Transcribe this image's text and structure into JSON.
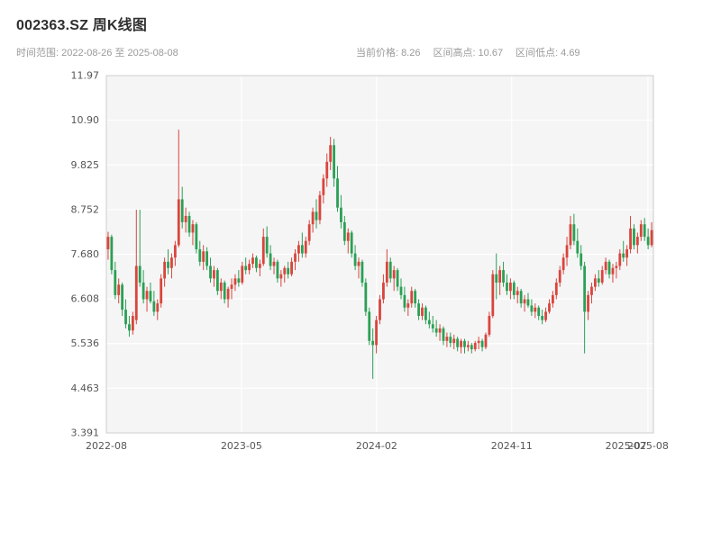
{
  "header": {
    "title": "002363.SZ 周K线图",
    "time_range": "时间范围: 2022-08-26 至 2025-08-08",
    "stats": [
      {
        "label": "当前价格:",
        "value": "8.26"
      },
      {
        "label": "区间高点:",
        "value": "10.67"
      },
      {
        "label": "区间低点:",
        "value": "4.69"
      }
    ]
  },
  "chart_data": {
    "type": "candlestick",
    "symbol": "002363.SZ",
    "period": "weekly",
    "start_date": "2022-08-26",
    "end_date": "2025-08-08",
    "current_price": 8.26,
    "range_high": 10.67,
    "range_low": 4.69,
    "ylim": [
      3.391,
      11.97
    ],
    "yticks": [
      "11.97",
      "10.90",
      "9.825",
      "8.752",
      "7.680",
      "6.608",
      "5.536",
      "4.463",
      "3.391"
    ],
    "ytick_values": [
      11.97,
      10.9,
      9.825,
      8.752,
      7.68,
      6.608,
      5.536,
      4.463,
      3.391
    ],
    "xticks": [
      {
        "label": "2022-08",
        "pos": 0.0
      },
      {
        "label": "2023-05",
        "pos": 0.247
      },
      {
        "label": "2024-02",
        "pos": 0.494
      },
      {
        "label": "2024-11",
        "pos": 0.741
      },
      {
        "label": "2025-07",
        "pos": 0.95,
        "minor": true
      },
      {
        "label": "2025-08",
        "pos": 0.99
      }
    ],
    "colors": {
      "up": "#d9453c",
      "down": "#2aa054",
      "plot_bg": "#f5f5f6",
      "grid": "#ffffff",
      "axis": "#cccccc",
      "tick_text": "#555555"
    },
    "ohlc": [
      [
        7.8,
        8.22,
        7.55,
        8.1
      ],
      [
        8.1,
        8.15,
        7.2,
        7.3
      ],
      [
        7.3,
        7.5,
        6.6,
        6.7
      ],
      [
        6.7,
        7.1,
        6.5,
        6.95
      ],
      [
        6.95,
        7.0,
        6.2,
        6.35
      ],
      [
        6.35,
        6.6,
        5.9,
        6.0
      ],
      [
        6.0,
        6.2,
        5.7,
        5.85
      ],
      [
        5.85,
        6.3,
        5.75,
        6.2
      ],
      [
        6.1,
        8.75,
        6.0,
        7.4
      ],
      [
        7.4,
        8.75,
        6.9,
        7.0
      ],
      [
        7.0,
        7.3,
        6.5,
        6.6
      ],
      [
        6.6,
        6.9,
        6.3,
        6.8
      ],
      [
        6.8,
        7.0,
        6.5,
        6.55
      ],
      [
        6.55,
        6.8,
        6.2,
        6.3
      ],
      [
        6.3,
        6.6,
        6.1,
        6.5
      ],
      [
        6.5,
        7.2,
        6.4,
        7.1
      ],
      [
        7.1,
        7.6,
        6.9,
        7.5
      ],
      [
        7.5,
        7.8,
        7.2,
        7.35
      ],
      [
        7.35,
        7.7,
        7.1,
        7.6
      ],
      [
        7.6,
        8.0,
        7.4,
        7.9
      ],
      [
        7.9,
        10.67,
        7.85,
        9.0
      ],
      [
        9.0,
        9.3,
        8.3,
        8.45
      ],
      [
        8.45,
        8.8,
        8.2,
        8.6
      ],
      [
        8.6,
        8.7,
        8.1,
        8.2
      ],
      [
        8.2,
        8.5,
        7.9,
        8.4
      ],
      [
        8.4,
        8.45,
        7.7,
        7.8
      ],
      [
        7.8,
        8.0,
        7.4,
        7.5
      ],
      [
        7.5,
        7.9,
        7.3,
        7.75
      ],
      [
        7.75,
        7.85,
        7.3,
        7.4
      ],
      [
        7.4,
        7.6,
        7.0,
        7.1
      ],
      [
        7.1,
        7.4,
        6.9,
        7.3
      ],
      [
        7.3,
        7.35,
        6.7,
        6.8
      ],
      [
        6.8,
        7.1,
        6.6,
        7.0
      ],
      [
        7.0,
        7.05,
        6.5,
        6.6
      ],
      [
        6.6,
        6.9,
        6.4,
        6.85
      ],
      [
        6.85,
        7.1,
        6.6,
        6.95
      ],
      [
        6.95,
        7.2,
        6.8,
        7.1
      ],
      [
        7.1,
        7.3,
        6.9,
        7.0
      ],
      [
        7.0,
        7.5,
        6.95,
        7.4
      ],
      [
        7.4,
        7.6,
        7.2,
        7.3
      ],
      [
        7.3,
        7.55,
        7.2,
        7.45
      ],
      [
        7.45,
        7.7,
        7.35,
        7.6
      ],
      [
        7.6,
        7.65,
        7.25,
        7.35
      ],
      [
        7.35,
        7.55,
        7.15,
        7.45
      ],
      [
        7.45,
        8.3,
        7.4,
        8.1
      ],
      [
        8.1,
        8.35,
        7.6,
        7.7
      ],
      [
        7.7,
        7.9,
        7.3,
        7.4
      ],
      [
        7.4,
        7.6,
        7.2,
        7.5
      ],
      [
        7.5,
        7.55,
        7.0,
        7.1
      ],
      [
        7.1,
        7.3,
        6.9,
        7.2
      ],
      [
        7.2,
        7.4,
        7.0,
        7.35
      ],
      [
        7.35,
        7.5,
        7.1,
        7.2
      ],
      [
        7.2,
        7.6,
        7.15,
        7.5
      ],
      [
        7.5,
        7.8,
        7.3,
        7.7
      ],
      [
        7.7,
        8.0,
        7.5,
        7.9
      ],
      [
        7.9,
        8.2,
        7.6,
        7.7
      ],
      [
        7.7,
        8.1,
        7.6,
        8.0
      ],
      [
        8.0,
        8.5,
        7.9,
        8.4
      ],
      [
        8.4,
        8.8,
        8.2,
        8.7
      ],
      [
        8.7,
        9.0,
        8.3,
        8.5
      ],
      [
        8.5,
        9.2,
        8.4,
        9.1
      ],
      [
        9.1,
        9.6,
        8.9,
        9.5
      ],
      [
        9.5,
        10.1,
        9.3,
        9.9
      ],
      [
        9.9,
        10.5,
        9.7,
        10.3
      ],
      [
        10.3,
        10.45,
        9.3,
        9.5
      ],
      [
        9.5,
        9.8,
        8.7,
        8.8
      ],
      [
        8.8,
        9.1,
        8.3,
        8.45
      ],
      [
        8.45,
        8.6,
        7.9,
        8.0
      ],
      [
        8.0,
        8.3,
        7.7,
        8.2
      ],
      [
        8.2,
        8.25,
        7.6,
        7.7
      ],
      [
        7.7,
        7.9,
        7.3,
        7.4
      ],
      [
        7.4,
        7.6,
        7.1,
        7.5
      ],
      [
        7.5,
        7.55,
        6.9,
        7.0
      ],
      [
        7.0,
        7.1,
        6.2,
        6.3
      ],
      [
        6.3,
        6.4,
        5.5,
        5.6
      ],
      [
        5.6,
        5.9,
        4.69,
        5.5
      ],
      [
        5.5,
        6.2,
        5.3,
        6.1
      ],
      [
        6.1,
        6.7,
        6.0,
        6.6
      ],
      [
        6.6,
        7.2,
        6.5,
        7.0
      ],
      [
        7.0,
        7.8,
        6.9,
        7.5
      ],
      [
        7.5,
        7.6,
        7.0,
        7.1
      ],
      [
        7.1,
        7.4,
        6.8,
        7.3
      ],
      [
        7.3,
        7.35,
        6.8,
        6.9
      ],
      [
        6.9,
        7.1,
        6.6,
        6.7
      ],
      [
        6.7,
        6.9,
        6.3,
        6.4
      ],
      [
        6.4,
        6.6,
        6.2,
        6.5
      ],
      [
        6.5,
        6.9,
        6.4,
        6.8
      ],
      [
        6.8,
        6.85,
        6.4,
        6.5
      ],
      [
        6.5,
        6.6,
        6.1,
        6.2
      ],
      [
        6.2,
        6.5,
        6.1,
        6.4
      ],
      [
        6.4,
        6.45,
        6.0,
        6.1
      ],
      [
        6.1,
        6.3,
        5.9,
        6.0
      ],
      [
        6.0,
        6.2,
        5.8,
        5.9
      ],
      [
        5.9,
        6.1,
        5.7,
        5.8
      ],
      [
        5.8,
        6.0,
        5.6,
        5.9
      ],
      [
        5.9,
        5.95,
        5.5,
        5.6
      ],
      [
        5.6,
        5.8,
        5.45,
        5.7
      ],
      [
        5.7,
        5.8,
        5.45,
        5.55
      ],
      [
        5.55,
        5.75,
        5.4,
        5.65
      ],
      [
        5.65,
        5.7,
        5.35,
        5.45
      ],
      [
        5.45,
        5.65,
        5.3,
        5.6
      ],
      [
        5.6,
        5.65,
        5.3,
        5.45
      ],
      [
        5.45,
        5.6,
        5.35,
        5.5
      ],
      [
        5.5,
        5.55,
        5.3,
        5.4
      ],
      [
        5.4,
        5.6,
        5.35,
        5.55
      ],
      [
        5.55,
        5.7,
        5.4,
        5.6
      ],
      [
        5.6,
        5.65,
        5.35,
        5.45
      ],
      [
        5.45,
        5.8,
        5.4,
        5.75
      ],
      [
        5.75,
        6.3,
        5.7,
        6.2
      ],
      [
        6.2,
        7.3,
        6.15,
        7.2
      ],
      [
        7.2,
        7.7,
        6.6,
        7.0
      ],
      [
        7.0,
        7.4,
        6.7,
        7.3
      ],
      [
        7.3,
        7.5,
        6.9,
        7.0
      ],
      [
        7.0,
        7.2,
        6.7,
        6.8
      ],
      [
        6.8,
        7.1,
        6.6,
        7.0
      ],
      [
        7.0,
        7.05,
        6.6,
        6.7
      ],
      [
        6.7,
        6.9,
        6.5,
        6.8
      ],
      [
        6.8,
        6.85,
        6.4,
        6.5
      ],
      [
        6.5,
        6.7,
        6.3,
        6.6
      ],
      [
        6.6,
        6.75,
        6.4,
        6.45
      ],
      [
        6.45,
        6.6,
        6.2,
        6.3
      ],
      [
        6.3,
        6.5,
        6.15,
        6.4
      ],
      [
        6.4,
        6.45,
        6.1,
        6.2
      ],
      [
        6.2,
        6.35,
        6.0,
        6.1
      ],
      [
        6.1,
        6.4,
        6.05,
        6.3
      ],
      [
        6.3,
        6.6,
        6.25,
        6.5
      ],
      [
        6.5,
        6.8,
        6.4,
        6.7
      ],
      [
        6.7,
        7.1,
        6.6,
        7.0
      ],
      [
        7.0,
        7.4,
        6.9,
        7.3
      ],
      [
        7.3,
        7.7,
        7.2,
        7.6
      ],
      [
        7.6,
        8.1,
        7.4,
        7.9
      ],
      [
        7.9,
        8.6,
        7.8,
        8.4
      ],
      [
        8.4,
        8.65,
        7.9,
        8.0
      ],
      [
        8.0,
        8.3,
        7.6,
        7.7
      ],
      [
        7.7,
        7.9,
        7.3,
        7.4
      ],
      [
        7.4,
        7.5,
        5.3,
        6.3
      ],
      [
        6.3,
        6.8,
        6.1,
        6.7
      ],
      [
        6.7,
        7.0,
        6.5,
        6.9
      ],
      [
        6.9,
        7.2,
        6.8,
        7.1
      ],
      [
        7.1,
        7.3,
        6.9,
        7.0
      ],
      [
        7.0,
        7.4,
        6.95,
        7.3
      ],
      [
        7.3,
        7.6,
        7.2,
        7.5
      ],
      [
        7.5,
        7.55,
        7.1,
        7.2
      ],
      [
        7.2,
        7.45,
        7.0,
        7.35
      ],
      [
        7.35,
        7.5,
        7.1,
        7.4
      ],
      [
        7.4,
        7.8,
        7.3,
        7.7
      ],
      [
        7.7,
        8.0,
        7.5,
        7.6
      ],
      [
        7.6,
        7.9,
        7.4,
        7.8
      ],
      [
        7.8,
        8.6,
        7.7,
        8.3
      ],
      [
        8.3,
        8.4,
        7.8,
        7.9
      ],
      [
        7.9,
        8.2,
        7.7,
        8.1
      ],
      [
        8.1,
        8.5,
        8.0,
        8.4
      ],
      [
        8.4,
        8.55,
        8.0,
        8.1
      ],
      [
        8.1,
        8.3,
        7.8,
        7.9
      ],
      [
        7.9,
        8.45,
        7.85,
        8.26
      ]
    ]
  }
}
